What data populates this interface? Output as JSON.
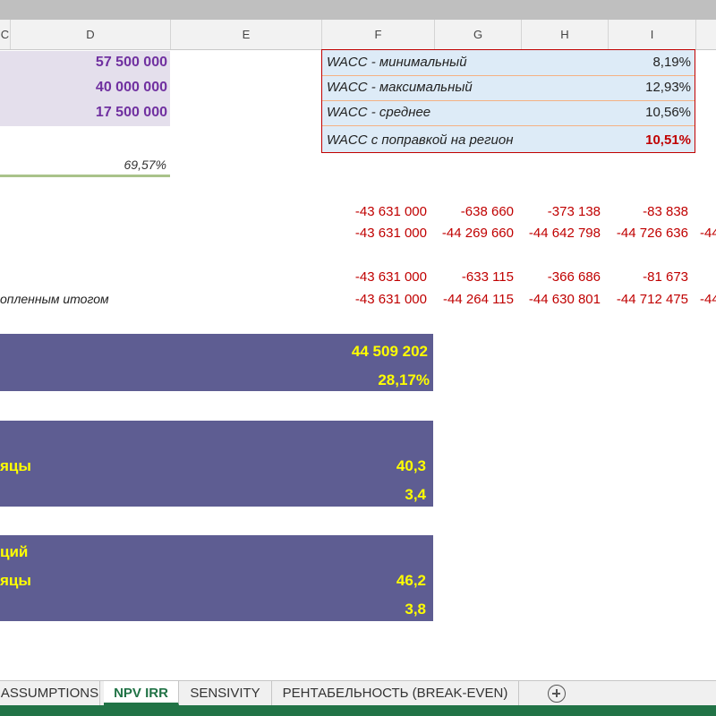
{
  "columns": [
    "C",
    "D",
    "E",
    "F",
    "G",
    "H",
    "I"
  ],
  "summary_values": [
    "57 500 000",
    "40 000 000",
    "17 500 000"
  ],
  "ratio": "69,57%",
  "wacc": [
    {
      "label": "WACC - минимальный",
      "value": "8,19%"
    },
    {
      "label": "WACC - максимальный",
      "value": "12,93%"
    },
    {
      "label": "WACC - среднее",
      "value": "10,56%"
    },
    {
      "label": "WACC с поправкой на регион",
      "value": "10,51%"
    }
  ],
  "cashflow_rows": [
    {
      "label": "",
      "values": [
        "-43 631 000",
        "-638 660",
        "-373 138",
        "-83 838"
      ]
    },
    {
      "label": "",
      "values": [
        "-43 631 000",
        "-44 269 660",
        "-44 642 798",
        "-44 726 636",
        "-44"
      ]
    },
    {
      "label": "",
      "values": [
        "-43 631 000",
        "-633 115",
        "-366 686",
        "-81 673"
      ]
    },
    {
      "label": "опленным итогом",
      "values": [
        "-43 631 000",
        "-44 264 115",
        "-44 630 801",
        "-44 712 475",
        "-44"
      ]
    }
  ],
  "band1": {
    "npv": "44 509 202",
    "irr": "28,17%"
  },
  "band2": {
    "label": "яцы",
    "months": "40,3",
    "years": "3,4"
  },
  "band3": {
    "title": "ций",
    "label": "яцы",
    "months": "46,2",
    "years": "3,8"
  },
  "sheet_tabs": [
    "ASSUMPTIONS",
    "NPV IRR",
    "SENSIVITY",
    "РЕНТАБЕЛЬНОСТЬ (BREAK-EVEN)"
  ],
  "active_tab": "NPV IRR",
  "icons": {
    "add_sheet": "plus-circle-icon"
  },
  "colors": {
    "accent": "#217346",
    "band": "#5e5d92",
    "highlight": "#ffff00",
    "negative": "#c00000",
    "purple": "#7030a0"
  }
}
